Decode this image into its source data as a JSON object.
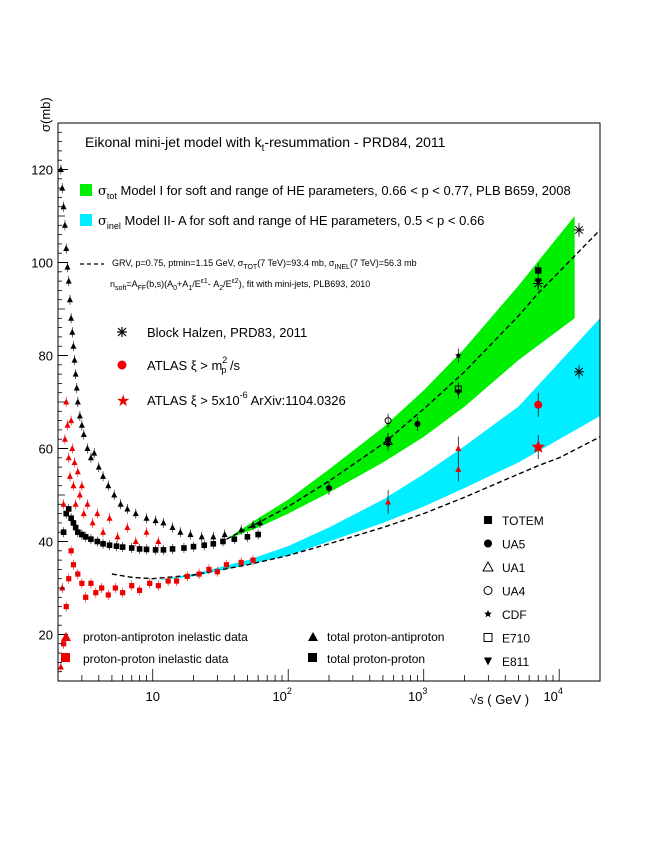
{
  "chart_data": {
    "type": "scatter",
    "title_main": "Eikonal mini-jet model with k",
    "title_sub": "t",
    "title_end": "-resummation - PRD84, 2011",
    "ylabel": "σ(mb)",
    "xlabel": "√s ( GeV )",
    "x_scale": "log",
    "xlim": [
      2.0,
      20000
    ],
    "ylim": [
      10,
      130
    ],
    "yticks": [
      20,
      40,
      60,
      80,
      100,
      120
    ],
    "xticks": [
      {
        "value": 10,
        "label": "10"
      },
      {
        "value": 100,
        "base": "10",
        "exp": "2"
      },
      {
        "value": 1000,
        "base": "10",
        "exp": "3"
      },
      {
        "value": 10000,
        "base": "10",
        "exp": "4"
      }
    ],
    "bands": [
      {
        "id": "tot",
        "color": "#00ee00",
        "x": [
          35,
          60,
          100,
          200,
          500,
          1000,
          2000,
          5000,
          13000
        ],
        "low": [
          40.5,
          43,
          46,
          50.5,
          57,
          62.5,
          69,
          79,
          88
        ],
        "high": [
          40.5,
          45,
          49,
          55.5,
          64.5,
          72.5,
          81.5,
          95,
          110
        ]
      },
      {
        "id": "inel",
        "color": "#00eeff",
        "x": [
          10,
          20,
          50,
          100,
          200,
          500,
          1000,
          2000,
          5000,
          20000
        ],
        "low": [
          31.5,
          32.5,
          35,
          37,
          40,
          44,
          47.5,
          51.5,
          57,
          67
        ],
        "high": [
          31.5,
          33,
          36,
          39,
          43,
          49,
          54.5,
          60.5,
          69,
          88
        ]
      }
    ],
    "curves": [
      {
        "id": "grv-tot",
        "x": [
          35,
          60,
          100,
          200,
          500,
          1000,
          2000,
          5000,
          7000,
          10000,
          20000
        ],
        "y": [
          40.5,
          44,
          47.5,
          53,
          61,
          68.5,
          76.5,
          88.5,
          93.4,
          98,
          107
        ]
      },
      {
        "id": "grv-inel",
        "x": [
          5,
          7,
          10,
          20,
          50,
          100,
          200,
          500,
          1000,
          2000,
          5000,
          7000,
          10000,
          20000
        ],
        "y": [
          33,
          32.3,
          32,
          32.8,
          35,
          37,
          39.5,
          43,
          46,
          49.5,
          54.5,
          56.3,
          58,
          62.5
        ]
      }
    ],
    "series": [
      {
        "marker": "tri-up-red",
        "color": "#ee0000",
        "points": [
          [
            2.1,
            13
          ],
          [
            2.15,
            30
          ],
          [
            2.2,
            48
          ],
          [
            2.25,
            62
          ],
          [
            2.3,
            70
          ],
          [
            2.35,
            65
          ],
          [
            2.4,
            58
          ],
          [
            2.45,
            54
          ],
          [
            2.5,
            66
          ],
          [
            2.55,
            60
          ],
          [
            2.6,
            52
          ],
          [
            2.65,
            57
          ],
          [
            2.7,
            48
          ],
          [
            2.8,
            55
          ],
          [
            2.9,
            50
          ],
          [
            3.0,
            52
          ],
          [
            3.1,
            46
          ],
          [
            3.3,
            48
          ],
          [
            3.6,
            44
          ],
          [
            3.9,
            46
          ],
          [
            4.3,
            42
          ],
          [
            4.8,
            45
          ],
          [
            5.5,
            41
          ],
          [
            6.5,
            43
          ],
          [
            7.5,
            40
          ],
          [
            9,
            42
          ],
          [
            11,
            40
          ]
        ]
      },
      {
        "marker": "sq-red",
        "color": "#ee0000",
        "points": [
          [
            2.2,
            18
          ],
          [
            2.3,
            26
          ],
          [
            2.4,
            32
          ],
          [
            2.5,
            38
          ],
          [
            2.6,
            35
          ],
          [
            2.8,
            33
          ],
          [
            3.0,
            31
          ],
          [
            3.2,
            28
          ],
          [
            3.5,
            31
          ],
          [
            3.8,
            29
          ],
          [
            4.2,
            30
          ],
          [
            4.7,
            28.5
          ],
          [
            5.3,
            30
          ],
          [
            6,
            29
          ],
          [
            7,
            30.5
          ],
          [
            8,
            29.5
          ],
          [
            9.5,
            31
          ],
          [
            11,
            30.5
          ],
          [
            13,
            31.5
          ],
          [
            15,
            31.5
          ],
          [
            18,
            32.5
          ],
          [
            22,
            33
          ],
          [
            26,
            34
          ],
          [
            30,
            33.5
          ],
          [
            35,
            35
          ],
          [
            45,
            35.5
          ],
          [
            55,
            36
          ]
        ]
      },
      {
        "marker": "tri-up-black",
        "color": "#000000",
        "points": [
          [
            2.1,
            120
          ],
          [
            2.15,
            116
          ],
          [
            2.2,
            112
          ],
          [
            2.25,
            108
          ],
          [
            2.3,
            103
          ],
          [
            2.35,
            99
          ],
          [
            2.4,
            96
          ],
          [
            2.45,
            92
          ],
          [
            2.5,
            88
          ],
          [
            2.55,
            85
          ],
          [
            2.6,
            82
          ],
          [
            2.65,
            79
          ],
          [
            2.7,
            76
          ],
          [
            2.75,
            73
          ],
          [
            2.8,
            70
          ],
          [
            2.9,
            67
          ],
          [
            3.0,
            65
          ],
          [
            3.1,
            63
          ],
          [
            3.3,
            60
          ],
          [
            3.5,
            58
          ],
          [
            3.7,
            59
          ],
          [
            4.0,
            56
          ],
          [
            4.3,
            54
          ],
          [
            4.7,
            52
          ],
          [
            5.2,
            50
          ],
          [
            5.8,
            48
          ],
          [
            6.5,
            47
          ],
          [
            7.5,
            46
          ],
          [
            9,
            45
          ],
          [
            10.5,
            44.5
          ],
          [
            12,
            44
          ],
          [
            14,
            43
          ],
          [
            16,
            42
          ],
          [
            19,
            41.5
          ],
          [
            23,
            41
          ],
          [
            28,
            41
          ],
          [
            34,
            41.5
          ],
          [
            45,
            42.5
          ],
          [
            55,
            43.5
          ],
          [
            62,
            44
          ]
        ]
      },
      {
        "marker": "sq-black",
        "color": "#000000",
        "points": [
          [
            2.2,
            42
          ],
          [
            2.3,
            46
          ],
          [
            2.4,
            47
          ],
          [
            2.5,
            45
          ],
          [
            2.6,
            44
          ],
          [
            2.7,
            43
          ],
          [
            2.8,
            42
          ],
          [
            3.0,
            41.5
          ],
          [
            3.2,
            41
          ],
          [
            3.5,
            40.5
          ],
          [
            3.9,
            40
          ],
          [
            4.3,
            39.5
          ],
          [
            4.8,
            39.2
          ],
          [
            5.4,
            39
          ],
          [
            6,
            38.8
          ],
          [
            7,
            38.6
          ],
          [
            8,
            38.4
          ],
          [
            9,
            38.3
          ],
          [
            10.5,
            38.2
          ],
          [
            12,
            38.2
          ],
          [
            14,
            38.4
          ],
          [
            17,
            38.6
          ],
          [
            20,
            38.9
          ],
          [
            24,
            39.2
          ],
          [
            28,
            39.5
          ],
          [
            33,
            40
          ],
          [
            40,
            40.5
          ],
          [
            50,
            41
          ],
          [
            60,
            41.5
          ]
        ]
      }
    ],
    "experiments": [
      {
        "marker": "circle-filled",
        "points": [
          [
            200,
            51.5
          ],
          [
            546,
            61.9
          ],
          [
            900,
            65.3
          ]
        ]
      },
      {
        "marker": "square-filled",
        "points": [
          [
            7000,
            98.3
          ]
        ]
      },
      {
        "marker": "tri-up-open",
        "points": [
          [
            546,
            61.5
          ]
        ]
      },
      {
        "marker": "circle-open",
        "points": [
          [
            546,
            66
          ]
        ]
      },
      {
        "marker": "star-small",
        "points": [
          [
            546,
            61
          ],
          [
            1800,
            80
          ]
        ]
      },
      {
        "marker": "square-open",
        "points": [
          [
            1800,
            72.8
          ]
        ]
      },
      {
        "marker": "tri-down-filled",
        "points": [
          [
            1800,
            72.1
          ],
          [
            7000,
            96
          ]
        ]
      },
      {
        "marker": "asterisk",
        "points": [
          [
            7000,
            95.5
          ],
          [
            14000,
            107
          ],
          [
            14000,
            76.5
          ]
        ]
      }
    ],
    "atlas": [
      {
        "marker": "circle-red",
        "points": [
          [
            7000,
            69.4
          ]
        ]
      },
      {
        "marker": "star-red",
        "points": [
          [
            7000,
            60.3
          ]
        ]
      },
      {
        "marker": "tri-up-red",
        "points": [
          [
            546,
            48.5
          ],
          [
            1800,
            55.5
          ],
          [
            1800,
            60
          ]
        ]
      }
    ],
    "legend_top": {
      "green_sym": "σ",
      "green_sub": "tot",
      "green_text": " Model I  for soft and range of  HE parameters, 0.66 < p < 0.77, PLB B659, 2008",
      "cyan_sym": "σ",
      "cyan_sub": "inel",
      "cyan_text": " Model II- A  for soft and range of  HE parameters, 0.5 < p < 0.66",
      "grv_a": "GRV, p=0.75, ptmin=1.15 GeV, σ",
      "grv_b": "TOT",
      "grv_c": "(7 TeV)=93.4 mb, σ",
      "grv_d": "INEL",
      "grv_e": "(7 TeV)=56.3 mb",
      "nsoft": "n",
      "nsoft_sub": "soft",
      "nsoft_text": "=A",
      "nsoft_b": "FF",
      "nsoft_c": "(b,s)(A",
      "nsoft_d": "0",
      "nsoft_e": "+A",
      "nsoft_f": "1",
      "nsoft_g": "/E",
      "nsoft_h": "ε1",
      "nsoft_i": "- A",
      "nsoft_j": "2",
      "nsoft_k": "/E",
      "nsoft_l": "ε2",
      "nsoft_m": "), fit with mini-jets, PLB693, 2010"
    },
    "legend_mid": {
      "block": "Block Halzen, PRD83, 2011",
      "atlas1_a": "ATLAS  ξ  >  m",
      "atlas1_sup": "2",
      "atlas1_sub": "p",
      "atlas1_b": " /s",
      "atlas2_a": "ATLAS ξ  >  5x10",
      "atlas2_sup": "-6",
      "atlas2_b": "   ArXiv:1104.0326"
    },
    "legend_exp": [
      "TOTEM",
      "UA5",
      "UA1",
      "UA4",
      "CDF",
      "E710",
      "E811"
    ],
    "legend_bottom": {
      "pbar_inel": "proton-antiproton inelastic data",
      "pp_inel": "proton-proton inelastic data",
      "pbar_tot": "total proton-antiproton",
      "pp_tot": "total proton-proton"
    }
  }
}
